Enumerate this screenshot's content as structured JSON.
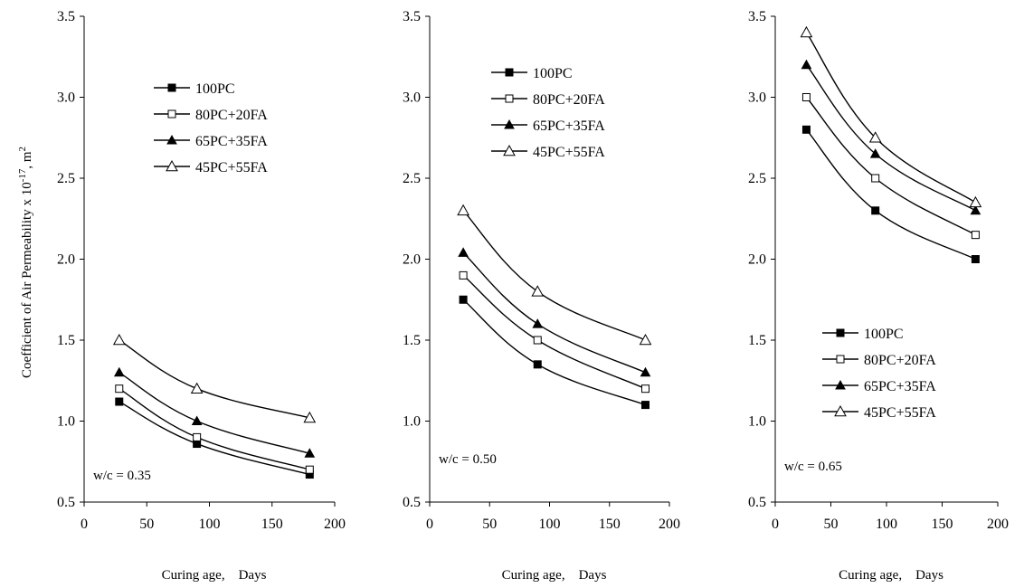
{
  "figure": {
    "ylabel_prefix": "Coefficient of Air Permeability x 10",
    "ylabel_exp": "-17",
    "ylabel_unit": ", m",
    "ylabel_unit_exp": "2"
  },
  "series_styles": [
    {
      "name": "100PC",
      "marker": "filled-square"
    },
    {
      "name": "80PC+20FA",
      "marker": "open-square"
    },
    {
      "name": "65PC+35FA",
      "marker": "filled-triangle"
    },
    {
      "name": "45PC+55FA",
      "marker": "open-triangle"
    }
  ],
  "chart_data": [
    {
      "type": "line",
      "note": "w/c = 0.35",
      "xlabel": "Curing age,    Days",
      "xlim": [
        0,
        200
      ],
      "ylim": [
        0.5,
        3.5
      ],
      "xticks": [
        "0",
        "50",
        "100",
        "150",
        "200"
      ],
      "yticks": [
        "0.5",
        "1.0",
        "1.5",
        "2.0",
        "2.5",
        "3.0",
        "3.5"
      ],
      "legend_position": "top-center",
      "x": [
        28,
        90,
        180
      ],
      "series": [
        {
          "name": "100PC",
          "values": [
            1.12,
            0.86,
            0.67
          ]
        },
        {
          "name": "80PC+20FA",
          "values": [
            1.2,
            0.9,
            0.7
          ]
        },
        {
          "name": "65PC+35FA",
          "values": [
            1.3,
            1.0,
            0.8
          ]
        },
        {
          "name": "45PC+55FA",
          "values": [
            1.5,
            1.2,
            1.02
          ]
        }
      ]
    },
    {
      "type": "line",
      "note": "w/c = 0.50",
      "xlabel": "Curing age,    Days",
      "xlim": [
        0,
        200
      ],
      "ylim": [
        0.5,
        3.5
      ],
      "xticks": [
        "0",
        "50",
        "100",
        "150",
        "200"
      ],
      "yticks": [
        "0.5",
        "1.0",
        "1.5",
        "2.0",
        "2.5",
        "3.0",
        "3.5"
      ],
      "legend_position": "top-center",
      "x": [
        28,
        90,
        180
      ],
      "series": [
        {
          "name": "100PC",
          "values": [
            1.75,
            1.35,
            1.1
          ]
        },
        {
          "name": "80PC+20FA",
          "values": [
            1.9,
            1.5,
            1.2
          ]
        },
        {
          "name": "65PC+35FA",
          "values": [
            2.04,
            1.6,
            1.3
          ]
        },
        {
          "name": "45PC+55FA",
          "values": [
            2.3,
            1.8,
            1.5
          ]
        }
      ]
    },
    {
      "type": "line",
      "note": "w/c = 0.65",
      "xlabel": "Curing age,    Days",
      "xlim": [
        0,
        200
      ],
      "ylim": [
        0.5,
        3.5
      ],
      "xticks": [
        "0",
        "50",
        "100",
        "150",
        "200"
      ],
      "yticks": [
        "0.5",
        "1.0",
        "1.5",
        "2.0",
        "2.5",
        "3.0",
        "3.5"
      ],
      "legend_position": "bottom-center",
      "x": [
        28,
        90,
        180
      ],
      "series": [
        {
          "name": "100PC",
          "values": [
            2.8,
            2.3,
            2.0
          ]
        },
        {
          "name": "80PC+20FA",
          "values": [
            3.0,
            2.5,
            2.15
          ]
        },
        {
          "name": "65PC+35FA",
          "values": [
            3.2,
            2.65,
            2.3
          ]
        },
        {
          "name": "45PC+55FA",
          "values": [
            3.4,
            2.75,
            2.35
          ]
        }
      ]
    }
  ]
}
